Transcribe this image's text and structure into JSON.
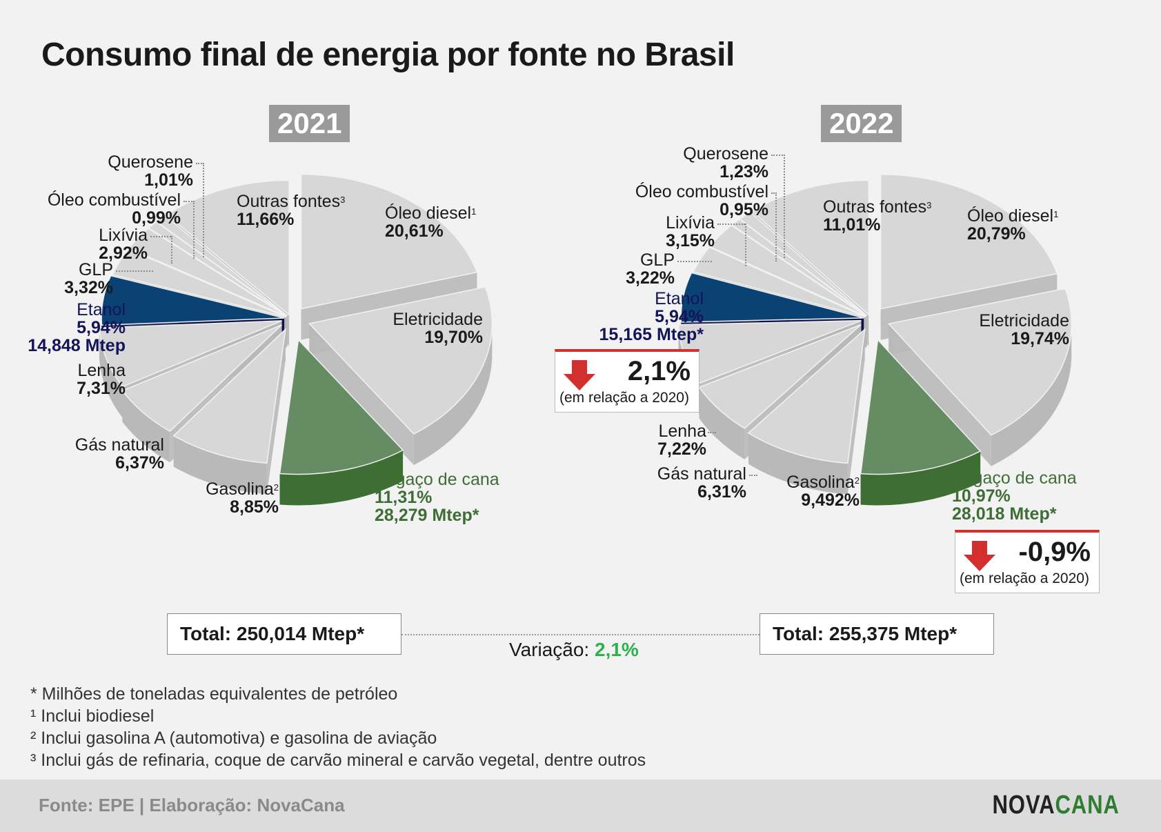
{
  "title": "Consumo final de energia por fonte no Brasil",
  "colors": {
    "slice_top": "#d7d7d7",
    "slice_side": "#b9b9b9",
    "etanol_top": "#0b4274",
    "etanol_side": "#0f0f4d",
    "bagaco_top": "#668c63",
    "bagaco_side": "#3f6e35",
    "variation_positive": "#2ab34a",
    "variation_box_accent": "#d32f2f"
  },
  "chart_data": [
    {
      "type": "pie",
      "title": "2021",
      "unit": "%",
      "slices": [
        {
          "name": "Óleo diesel",
          "value": 20.61,
          "label": "20,61%",
          "sup": "1"
        },
        {
          "name": "Eletricidade",
          "value": 19.7,
          "label": "19,70%"
        },
        {
          "name": "Bagaço de cana",
          "value": 11.31,
          "label": "11,31%",
          "extra": "28,279 Mtep*"
        },
        {
          "name": "Gasolina",
          "value": 8.85,
          "label": "8,85%",
          "sup": "2"
        },
        {
          "name": "Gás natural",
          "value": 6.37,
          "label": "6,37%"
        },
        {
          "name": "Lenha",
          "value": 7.31,
          "label": "7,31%"
        },
        {
          "name": "Etanol",
          "value": 5.94,
          "label": "5,94%",
          "extra": "14,848 Mtep"
        },
        {
          "name": "GLP",
          "value": 3.32,
          "label": "3,32%"
        },
        {
          "name": "Lixívia",
          "value": 2.92,
          "label": "2,92%"
        },
        {
          "name": "Óleo combustível",
          "value": 0.99,
          "label": "0,99%"
        },
        {
          "name": "Querosene",
          "value": 1.01,
          "label": "1,01%"
        },
        {
          "name": "Outras fontes",
          "value": 11.66,
          "label": "11,66%",
          "sup": "3"
        }
      ],
      "total": "Total: 250,014 Mtep*"
    },
    {
      "type": "pie",
      "title": "2022",
      "unit": "%",
      "slices": [
        {
          "name": "Óleo diesel",
          "value": 20.79,
          "label": "20,79%",
          "sup": "1"
        },
        {
          "name": "Eletricidade",
          "value": 19.74,
          "label": "19,74%"
        },
        {
          "name": "Bagaço de cana",
          "value": 10.97,
          "label": "10,97%",
          "extra": "28,018 Mtep*"
        },
        {
          "name": "Gasolina",
          "value": 9.492,
          "label": "9,492%",
          "sup": "2"
        },
        {
          "name": "Gás natural",
          "value": 6.31,
          "label": "6,31%"
        },
        {
          "name": "Lenha",
          "value": 7.22,
          "label": "7,22%"
        },
        {
          "name": "Etanol",
          "value": 5.94,
          "label": "5,94%",
          "extra": "15,165 Mtep*"
        },
        {
          "name": "GLP",
          "value": 3.22,
          "label": "3,22%"
        },
        {
          "name": "Lixívia",
          "value": 3.15,
          "label": "3,15%"
        },
        {
          "name": "Óleo combustível",
          "value": 0.95,
          "label": "0,95%"
        },
        {
          "name": "Querosene",
          "value": 1.23,
          "label": "1,23%"
        },
        {
          "name": "Outras fontes",
          "value": 11.01,
          "label": "11,01%",
          "sup": "3"
        }
      ],
      "total": "Total: 255,375 Mtep*",
      "etanol_variation": {
        "value": "2,1%",
        "note": "(em relação a 2020)"
      },
      "bagaco_variation": {
        "value": "-0,9%",
        "note": "(em relação a 2020)"
      }
    }
  ],
  "variacao": {
    "label": "Variação:",
    "value": "2,1%"
  },
  "notes": [
    "* Milhões de toneladas equivalentes de petróleo",
    "¹ Inclui biodiesel",
    "² Inclui gasolina A (automotiva) e gasolina de aviação",
    "³ Inclui gás de refinaria, coque de carvão mineral e carvão vegetal, dentre outros"
  ],
  "footer": {
    "source": "Fonte: EPE | Elaboração: NovaCana",
    "brand_a": "NOVA",
    "brand_b": "CANA"
  }
}
